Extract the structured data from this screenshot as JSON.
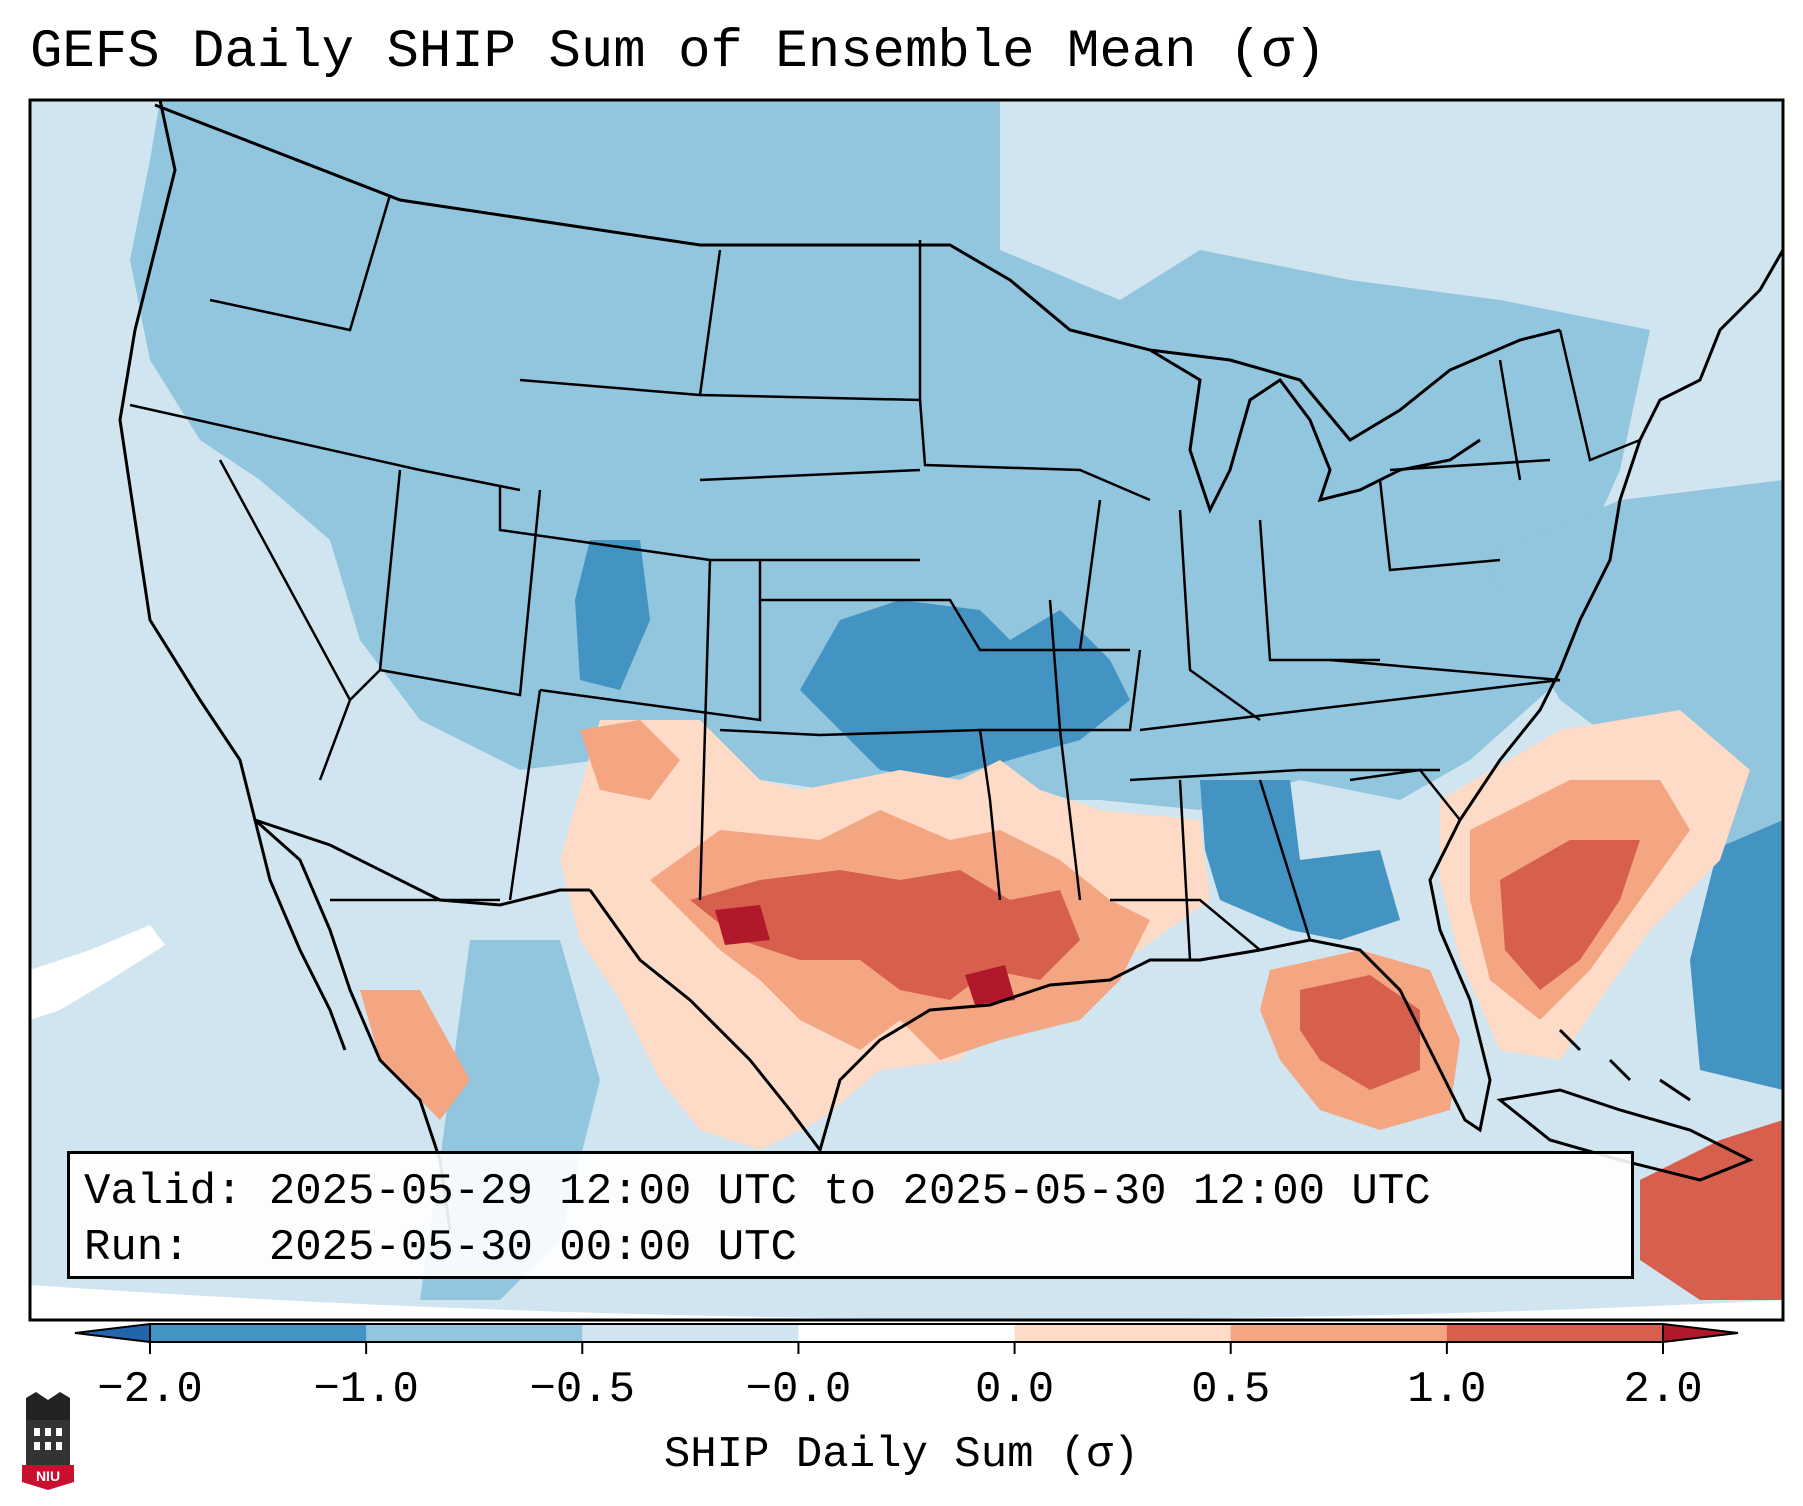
{
  "title": "GEFS Daily SHIP Sum of Ensemble Mean (σ)",
  "info": {
    "valid_label": "Valid:",
    "valid_value": "2025-05-29 12:00 UTC to 2025-05-30 12:00 UTC",
    "run_label": "Run:",
    "run_value": "2025-05-30 00:00 UTC"
  },
  "colorbar": {
    "label": "SHIP Daily Sum (σ)",
    "ticks": [
      "−2.0",
      "−1.0",
      "−0.5",
      "−0.0",
      "0.0",
      "0.5",
      "1.0",
      "2.0"
    ],
    "bins": [
      {
        "from": -2.0,
        "to": -1.0,
        "color": "#4393c3"
      },
      {
        "from": -1.0,
        "to": -0.5,
        "color": "#92c5de"
      },
      {
        "from": -0.5,
        "to": 0.0,
        "color": "#d1e5f0"
      },
      {
        "from": 0.0,
        "to": 0.0,
        "color": "#ffffff"
      },
      {
        "from": 0.0,
        "to": 0.5,
        "color": "#fddbc7"
      },
      {
        "from": 0.5,
        "to": 1.0,
        "color": "#f4a582"
      },
      {
        "from": 1.0,
        "to": 2.0,
        "color": "#d6604d"
      }
    ],
    "under_color": "#2166ac",
    "over_color": "#b2182b"
  },
  "colors": {
    "ocean_background": "#d1e5f0",
    "border": "#000000"
  },
  "logo_text": "NIU"
}
